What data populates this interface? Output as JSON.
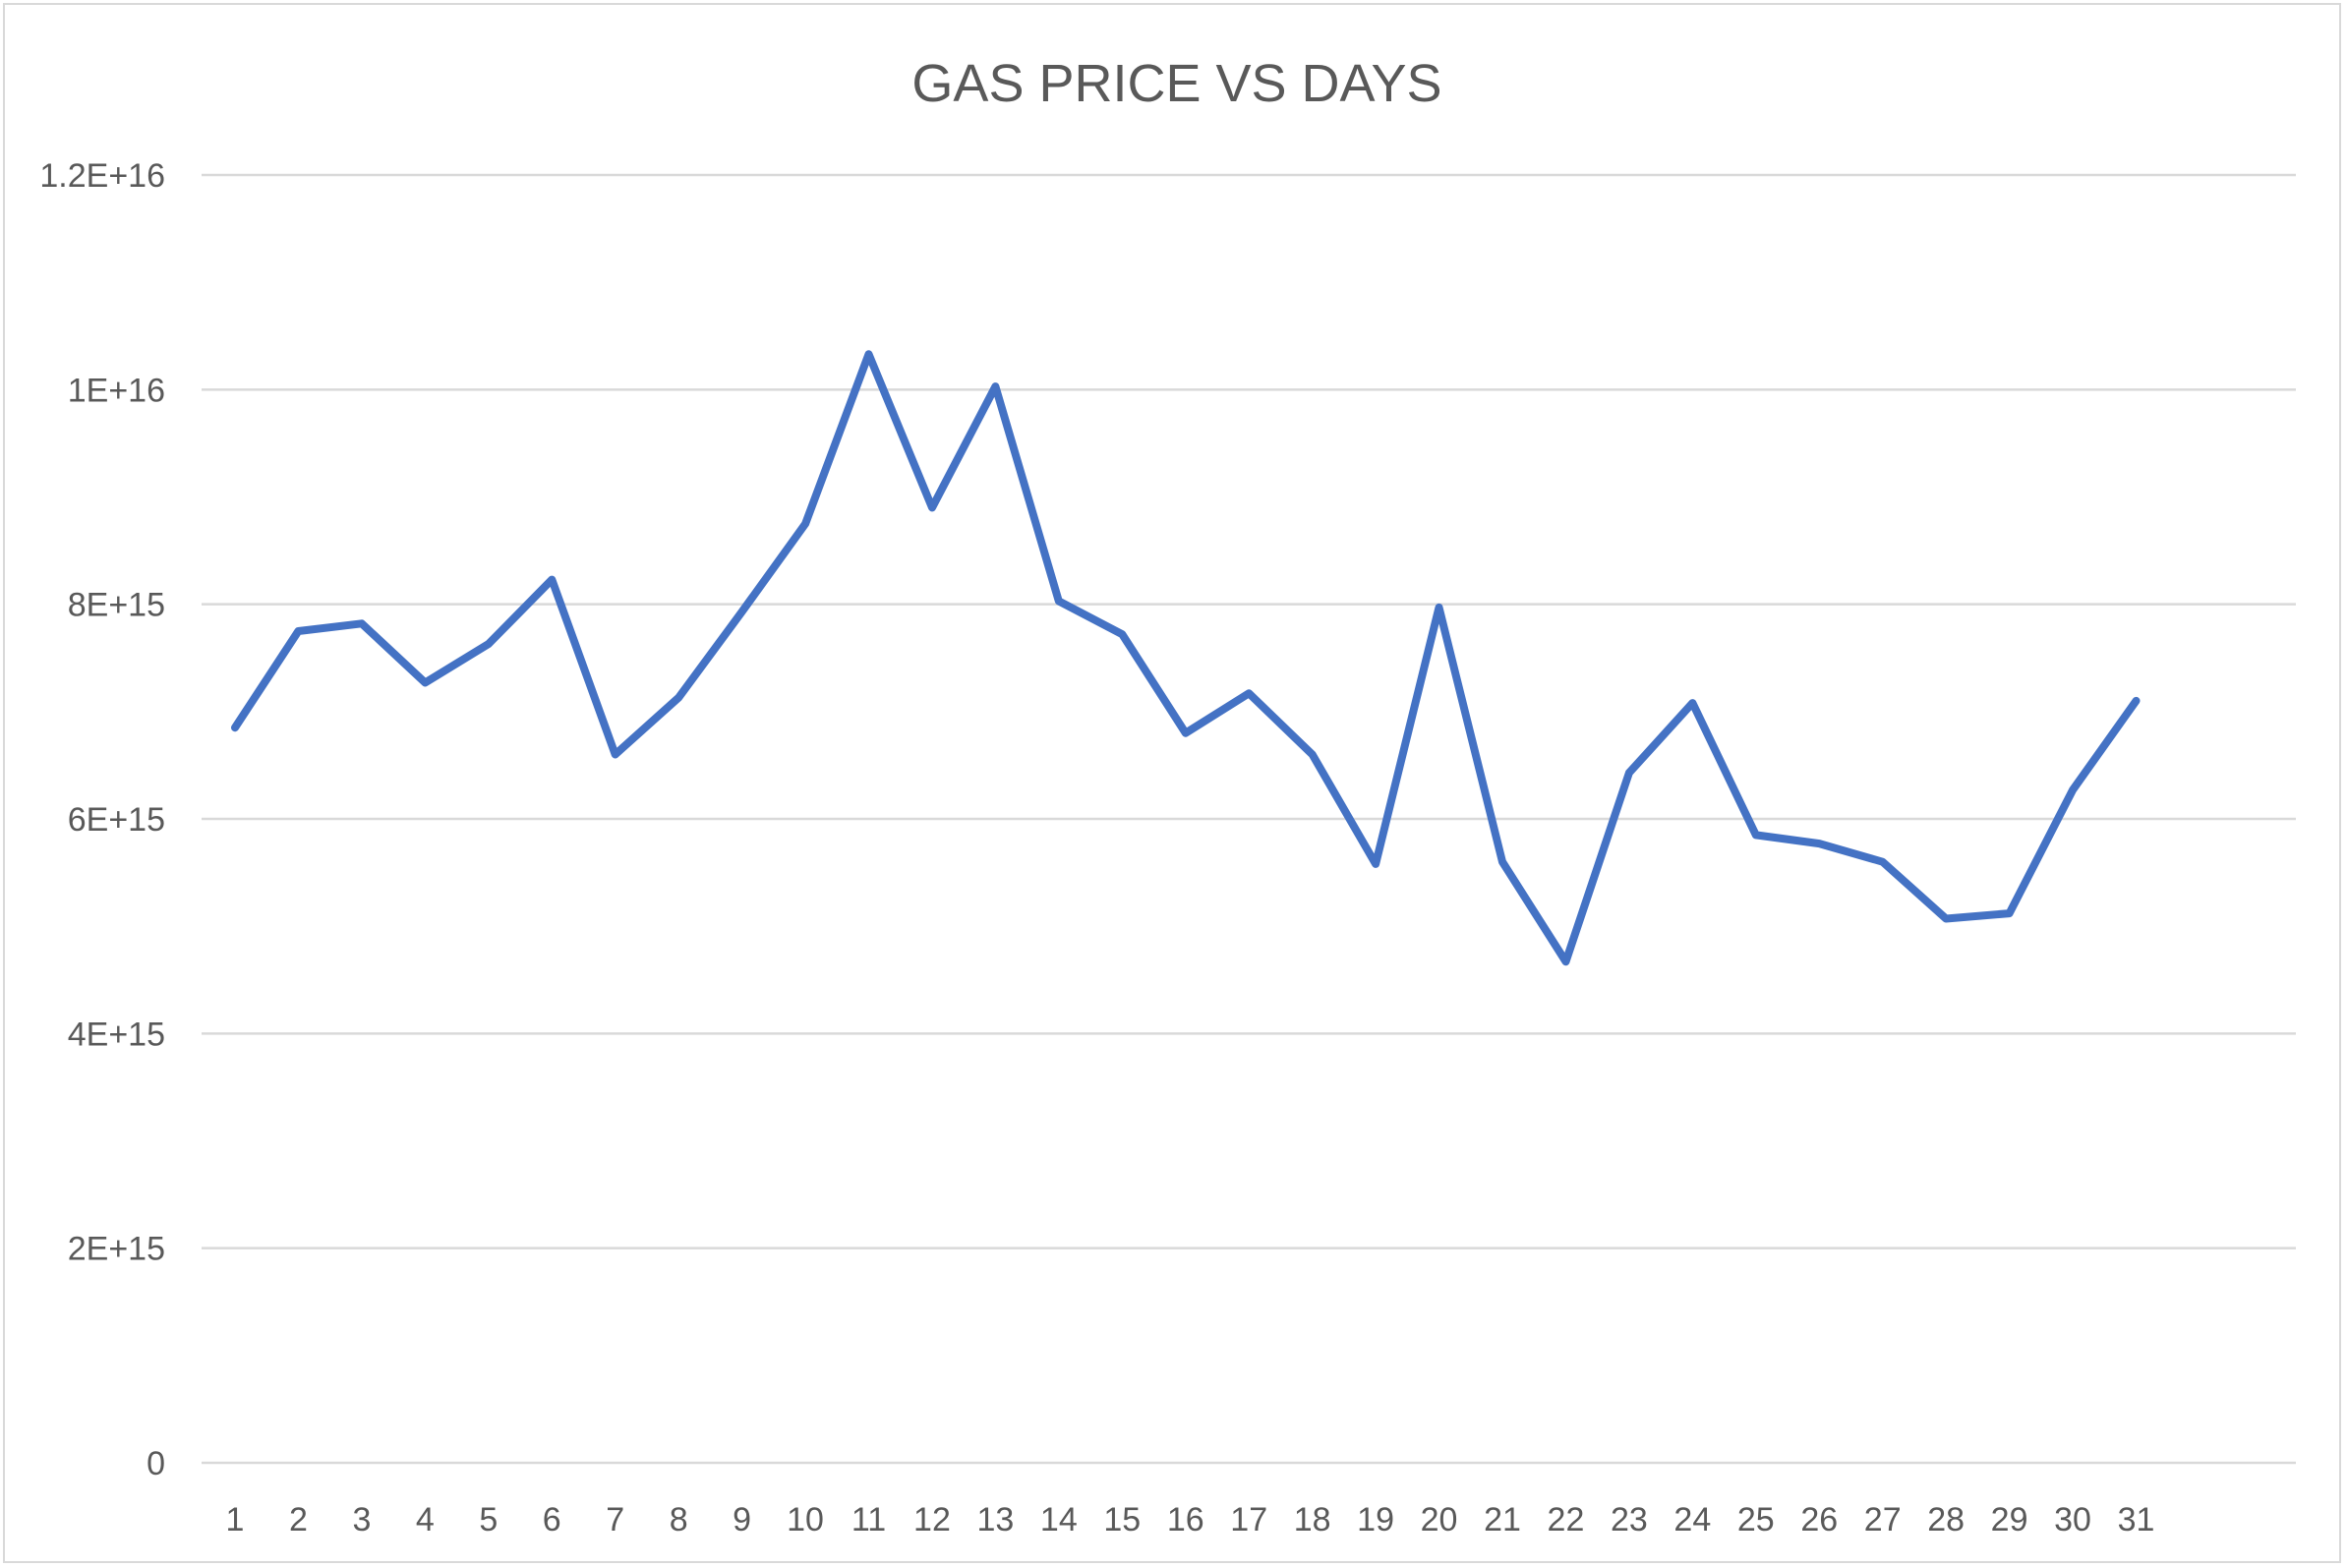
{
  "chart_data": {
    "type": "line",
    "title": "GAS PRICE VS DAYS",
    "xlabel": "",
    "ylabel": "",
    "categories": [
      "1",
      "2",
      "3",
      "4",
      "5",
      "6",
      "7",
      "8",
      "9",
      "10",
      "11",
      "12",
      "13",
      "14",
      "15",
      "16",
      "17",
      "18",
      "19",
      "20",
      "21",
      "22",
      "23",
      "24",
      "25",
      "26",
      "27",
      "28",
      "29",
      "30",
      "31"
    ],
    "series": [
      {
        "color": "#4472c4",
        "values": [
          6850000000000000.0,
          7750000000000000.0,
          7820000000000000.0,
          7270000000000000.0,
          7630000000000000.0,
          8230000000000000.0,
          6600000000000000.0,
          7130000000000000.0,
          7930000000000000.0,
          8750000000000000.0,
          1.033e+16,
          8900000000000000.0,
          1.003e+16,
          8030000000000000.0,
          7720000000000000.0,
          6800000000000000.0,
          7170000000000000.0,
          6600000000000000.0,
          5580000000000000.0,
          7970000000000000.0,
          5600000000000000.0,
          4670000000000000.0,
          6430000000000000.0,
          7080000000000000.0,
          5850000000000000.0,
          5770000000000000.0,
          5600000000000000.0,
          5070000000000000.0,
          5120000000000000.0,
          6270000000000000.0,
          7100000000000000.0
        ]
      }
    ],
    "ylim": [
      0,
      1.2e+16
    ],
    "yticks": [
      0,
      2000000000000000.0,
      4000000000000000.0,
      6000000000000000.0,
      8000000000000000.0,
      1e+16,
      1.2e+16
    ],
    "ytick_labels": [
      "0",
      "2E+15",
      "4E+15",
      "6E+15",
      "8E+15",
      "1E+16",
      "1.2E+16"
    ],
    "grid": "horizontal",
    "legend": "none"
  }
}
